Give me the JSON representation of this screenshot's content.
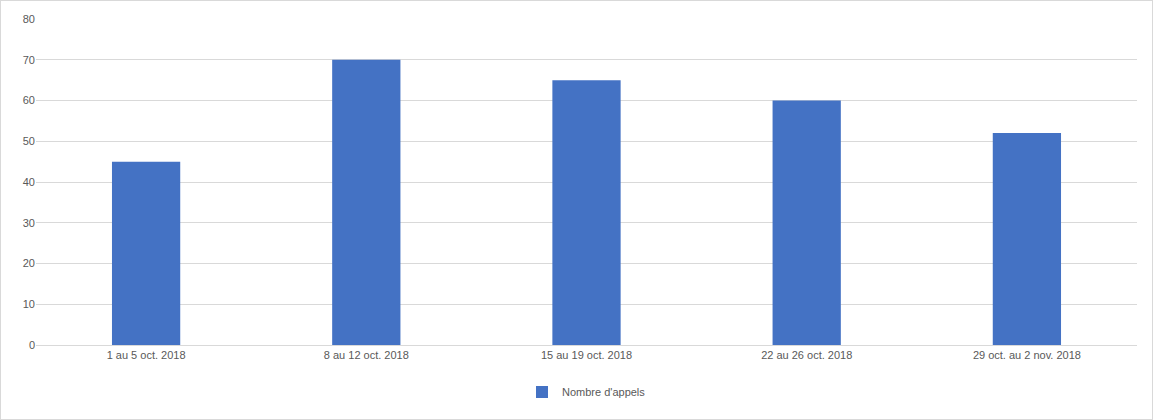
{
  "chart_data": {
    "type": "bar",
    "categories": [
      "1 au 5 oct. 2018",
      "8 au 12 oct. 2018",
      "15 au 19 oct. 2018",
      "22 au 26 oct. 2018",
      "29 oct. au 2 nov. 2018"
    ],
    "series": [
      {
        "name": "Nombre d'appels",
        "color": "#4472c4",
        "values": [
          45,
          70,
          65,
          60,
          52
        ]
      }
    ],
    "ylim": [
      0,
      80
    ],
    "yticks": [
      0,
      10,
      20,
      30,
      40,
      50,
      60,
      70,
      80
    ],
    "grid": true,
    "legend": "bottom"
  }
}
